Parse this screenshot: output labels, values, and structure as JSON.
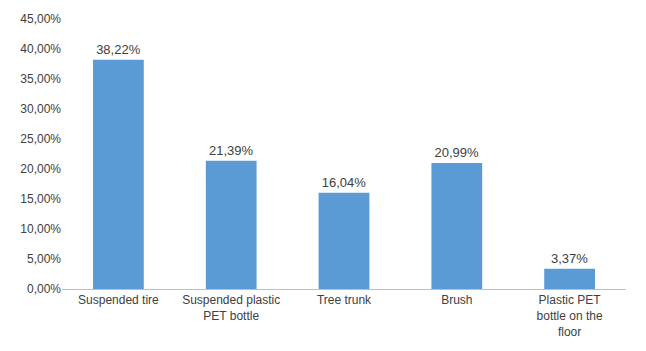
{
  "chart_data": {
    "type": "bar",
    "categories": [
      "Suspended tire",
      "Suspended plastic PET bottle",
      "Tree trunk",
      "Brush",
      "Plastic PET bottle on the floor"
    ],
    "values": [
      38.22,
      21.39,
      16.04,
      20.99,
      3.37
    ],
    "value_labels": [
      "38,22%",
      "21,39%",
      "16,04%",
      "20,99%",
      "3,37%"
    ],
    "color": "#5b9bd5",
    "ylim": [
      0,
      45
    ],
    "yticks": [
      {
        "value": 0,
        "label": "0,00%"
      },
      {
        "value": 5,
        "label": "5,00%"
      },
      {
        "value": 10,
        "label": "10,00%"
      },
      {
        "value": 15,
        "label": "15,00%"
      },
      {
        "value": 20,
        "label": "20,00%"
      },
      {
        "value": 25,
        "label": "25,00%"
      },
      {
        "value": 30,
        "label": "30,00%"
      },
      {
        "value": 35,
        "label": "35,00%"
      },
      {
        "value": 40,
        "label": "40,00%"
      },
      {
        "value": 45,
        "label": "45,00%"
      }
    ],
    "grid": false,
    "data_labels": true
  }
}
